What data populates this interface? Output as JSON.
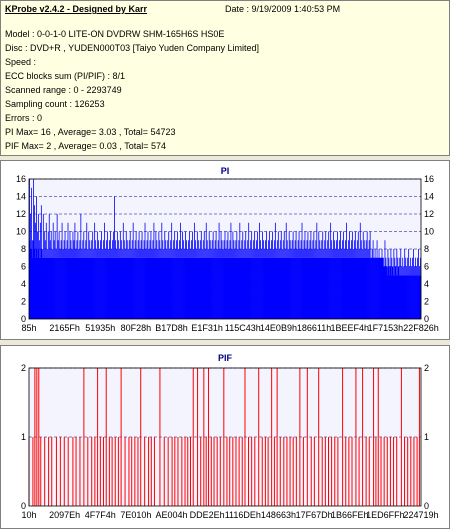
{
  "info": {
    "title": "KProbe v2.4.2 - Designed by Karr",
    "date": "Date : 9/19/2009 1:40:53 PM",
    "lines": [
      "Model : 0-0-1-0 LITE-ON DVDRW SHM-165H6S HS0E",
      "Disc : DVD+R , YUDEN000T03 [Taiyo Yuden Company Limited]",
      "Speed :",
      "ECC blocks sum (PI/PIF) : 8/1",
      "Scanned range : 0 - 2293749",
      "Sampling count : 126253",
      "Errors : 0",
      "PI Max= 16 , Average= 3.03 , Total= 54723",
      "PIF Max= 2 , Average= 0.03 , Total= 574"
    ]
  },
  "chart_data": [
    {
      "type": "bar",
      "title": "PI",
      "bar_color": "#0000ff",
      "background": "#f4f4ff",
      "ylim": [
        0,
        16
      ],
      "yticks": [
        0,
        2,
        4,
        6,
        8,
        10,
        12,
        14,
        16
      ],
      "grid": true,
      "x_tick_labels": [
        "85h",
        "2165Fh",
        "51935h",
        "80F28h",
        "B17D8h",
        "E1F31h",
        "115C43h",
        "14E0B9h",
        "186611h",
        "1BEEF4h",
        "1F7153h",
        "22F826h"
      ],
      "series": [
        {
          "values": [
            16,
            12,
            15,
            9,
            16,
            13,
            11,
            14,
            10,
            12,
            9,
            11,
            13,
            8,
            12,
            10,
            9,
            11,
            8,
            10,
            12,
            9,
            10,
            8,
            11,
            9,
            10,
            8,
            12,
            9,
            10,
            8,
            9,
            11,
            8,
            9,
            10,
            8,
            9,
            11,
            8,
            10,
            9,
            8,
            10,
            9,
            11,
            8,
            9,
            10,
            8,
            9,
            12,
            8,
            9,
            10,
            8,
            9,
            11,
            8,
            10,
            9,
            8,
            9,
            10,
            8,
            11,
            9,
            8,
            10,
            9,
            8,
            9,
            10,
            8,
            9,
            11,
            8,
            9,
            10,
            8,
            9,
            10,
            8,
            9,
            10,
            14,
            9,
            8,
            10,
            9,
            8,
            10,
            9,
            8,
            11,
            9,
            8,
            10,
            9,
            8,
            9,
            10,
            8,
            9,
            11,
            8,
            9,
            10,
            8,
            9,
            10,
            8,
            9,
            10,
            8,
            9,
            11,
            8,
            9,
            10,
            8,
            9,
            10,
            8,
            9,
            11,
            8,
            10,
            9,
            8,
            10,
            9,
            8,
            11,
            9,
            8,
            10,
            9,
            8,
            9,
            10,
            8,
            9,
            11,
            8,
            9,
            10,
            8,
            9,
            10,
            8,
            9,
            11,
            8,
            10,
            9,
            8,
            10,
            9,
            8,
            9,
            10,
            8,
            9,
            10,
            8,
            11,
            9,
            8,
            10,
            9,
            8,
            9,
            10,
            8,
            9,
            10,
            8,
            11,
            9,
            8,
            10,
            9,
            8,
            9,
            10,
            8,
            9,
            10,
            8,
            9,
            11,
            8,
            10,
            9,
            8,
            9,
            10,
            8,
            9,
            10,
            8,
            9,
            11,
            8,
            10,
            9,
            8,
            9,
            10,
            8,
            9,
            11,
            8,
            9,
            10,
            8,
            9,
            10,
            8,
            9,
            11,
            8,
            9,
            10,
            8,
            9,
            10,
            8,
            9,
            10,
            8,
            11,
            9,
            8,
            10,
            9,
            8,
            9,
            10,
            8,
            9,
            10,
            8,
            9,
            10,
            8,
            9,
            11,
            8,
            9,
            10,
            8,
            9,
            10,
            8,
            9,
            10,
            8,
            11,
            9,
            8,
            10,
            9,
            8,
            9,
            10,
            8,
            9,
            10,
            8,
            9,
            10,
            8,
            9,
            11,
            8,
            9,
            10,
            8,
            9,
            10,
            8,
            9,
            10,
            8,
            9,
            10,
            8,
            9,
            11,
            8,
            10,
            9,
            8,
            9,
            10,
            8,
            9,
            10,
            8,
            9,
            10,
            8,
            11,
            9,
            8,
            10,
            9,
            8,
            9,
            10,
            8,
            9,
            10,
            8,
            9,
            10,
            8,
            9,
            11,
            8,
            9,
            10,
            8,
            9,
            10,
            8,
            9,
            10,
            8,
            9,
            10,
            8,
            11,
            9,
            8,
            10,
            9,
            8,
            9,
            10,
            8,
            9,
            10,
            7,
            8,
            9,
            6,
            8,
            7,
            9,
            6,
            8,
            7,
            6,
            8,
            7,
            6,
            9,
            7,
            6,
            8,
            7,
            6,
            8,
            7,
            6,
            8,
            7,
            6,
            8,
            7,
            6,
            7,
            8,
            6,
            7,
            6,
            8,
            7,
            6,
            7,
            8,
            6,
            7,
            6,
            7,
            8,
            6,
            7,
            6,
            7,
            8,
            6,
            7
          ],
          "base_values": [
            9,
            8,
            8,
            7,
            9,
            8,
            7,
            8,
            7,
            8,
            7,
            7,
            8,
            7,
            7,
            7,
            7,
            7,
            7,
            7,
            7,
            7,
            7,
            7,
            7,
            7,
            7,
            7,
            7,
            7,
            7,
            7,
            7,
            7,
            7,
            7,
            7,
            7,
            7,
            7,
            7,
            7,
            7,
            7,
            7,
            7,
            7,
            7,
            7,
            7,
            7,
            7,
            7,
            7,
            7,
            7,
            7,
            7,
            7,
            7,
            7,
            7,
            7,
            7,
            7,
            7,
            7,
            7,
            7,
            7,
            7,
            7,
            7,
            7,
            7,
            7,
            7,
            7,
            7,
            7,
            7,
            7,
            7,
            7,
            7,
            7,
            7,
            7,
            7,
            7,
            7,
            7,
            7,
            7,
            7,
            7,
            7,
            7,
            7,
            7,
            7,
            7,
            7,
            7,
            7,
            7,
            7,
            7,
            7,
            7,
            7,
            7,
            7,
            7,
            7,
            7,
            7,
            7,
            7,
            7,
            7,
            7,
            7,
            7,
            7,
            7,
            7,
            7,
            7,
            7,
            7,
            7,
            7,
            7,
            7,
            7,
            7,
            7,
            7,
            7,
            7,
            7,
            7,
            7,
            7,
            7,
            7,
            7,
            7,
            7,
            7,
            7,
            7,
            7,
            7,
            7,
            7,
            7,
            7,
            7,
            7,
            7,
            7,
            7,
            7,
            7,
            7,
            7,
            7,
            7,
            7,
            7,
            7,
            7,
            7,
            7,
            7,
            7,
            7,
            7,
            7,
            7,
            7,
            7,
            7,
            7,
            7,
            7,
            7,
            7,
            7,
            7,
            7,
            7,
            7,
            7,
            7,
            7,
            7,
            7,
            7,
            7,
            7,
            7,
            7,
            7,
            7,
            7,
            7,
            7,
            7,
            7,
            7,
            7,
            7,
            7,
            7,
            7,
            7,
            7,
            7,
            7,
            7,
            7,
            7,
            7,
            7,
            7,
            7,
            7,
            7,
            7,
            7,
            7,
            7,
            7,
            7,
            7,
            7,
            7,
            7,
            7,
            7,
            7,
            7,
            7,
            7,
            7,
            7,
            7,
            7,
            7,
            7,
            7,
            7,
            7,
            7,
            7,
            7,
            7,
            7,
            7,
            7,
            7,
            7,
            7,
            7,
            7,
            7,
            7,
            7,
            7,
            7,
            7,
            7,
            7,
            7,
            7,
            7,
            7,
            7,
            7,
            7,
            7,
            7,
            7,
            7,
            7,
            7,
            7,
            7,
            7,
            7,
            7,
            7,
            7,
            7,
            7,
            7,
            7,
            7,
            7,
            7,
            7,
            7,
            7,
            7,
            7,
            7,
            7,
            7,
            7,
            7,
            7,
            7,
            7,
            7,
            7,
            7,
            7,
            7,
            7,
            7,
            7,
            7,
            7,
            7,
            7,
            7,
            7,
            7,
            7,
            7,
            7,
            7,
            7,
            7,
            7,
            7,
            7,
            7,
            7,
            7,
            7,
            7,
            7,
            7,
            7,
            7,
            7,
            7,
            7,
            7,
            7,
            7,
            7,
            7,
            7,
            7,
            6,
            6,
            6,
            5,
            6,
            5,
            6,
            5,
            6,
            5,
            5,
            6,
            5,
            5,
            6,
            5,
            5,
            5,
            5,
            5,
            5,
            5,
            5,
            5,
            5,
            5,
            5,
            5,
            5,
            5,
            5,
            5,
            5,
            5,
            5,
            5,
            5,
            5,
            5,
            5,
            5,
            5,
            5,
            5,
            5,
            5,
            5,
            5,
            5,
            5,
            5
          ]
        }
      ]
    },
    {
      "type": "bar",
      "title": "PIF",
      "bar_color": "#ff0000",
      "background": "#f4f4ff",
      "ylim": [
        0,
        2
      ],
      "yticks": [
        0,
        1,
        2
      ],
      "grid": true,
      "x_tick_labels": [
        "10h",
        "2097Eh",
        "4F7F4h",
        "7E010h",
        "AE004h",
        "DDE2Eh",
        "1116DEh",
        "148663h",
        "17F67Dh",
        "1B66FEh",
        "1ED6FFh",
        "224719h"
      ],
      "series": [
        {
          "two_positions": [
            0.015,
            0.02,
            0.025,
            0.14,
            0.175,
            0.197,
            0.235,
            0.285,
            0.334,
            0.419,
            0.43,
            0.446,
            0.458,
            0.497,
            0.551,
            0.586,
            0.619,
            0.633,
            0.691,
            0.71,
            0.739,
            0.8,
            0.834,
            0.851,
            0.879,
            0.891,
            0.95,
            0.996
          ],
          "one_positions": [
            0.0,
            0.01,
            0.03,
            0.04,
            0.05,
            0.058,
            0.07,
            0.08,
            0.09,
            0.1,
            0.112,
            0.12,
            0.13,
            0.15,
            0.16,
            0.168,
            0.182,
            0.19,
            0.205,
            0.212,
            0.22,
            0.228,
            0.245,
            0.255,
            0.262,
            0.27,
            0.278,
            0.295,
            0.305,
            0.312,
            0.32,
            0.345,
            0.355,
            0.365,
            0.372,
            0.38,
            0.39,
            0.398,
            0.405,
            0.412,
            0.438,
            0.452,
            0.465,
            0.472,
            0.48,
            0.488,
            0.505,
            0.512,
            0.52,
            0.528,
            0.536,
            0.544,
            0.56,
            0.568,
            0.576,
            0.595,
            0.603,
            0.61,
            0.626,
            0.641,
            0.65,
            0.658,
            0.666,
            0.674,
            0.682,
            0.7,
            0.72,
            0.728,
            0.748,
            0.756,
            0.764,
            0.772,
            0.78,
            0.788,
            0.808,
            0.816,
            0.824,
            0.842,
            0.86,
            0.868,
            0.885,
            0.898,
            0.906,
            0.914,
            0.922,
            0.93,
            0.938,
            0.958,
            0.966,
            0.974,
            0.982,
            0.99
          ]
        }
      ]
    }
  ]
}
